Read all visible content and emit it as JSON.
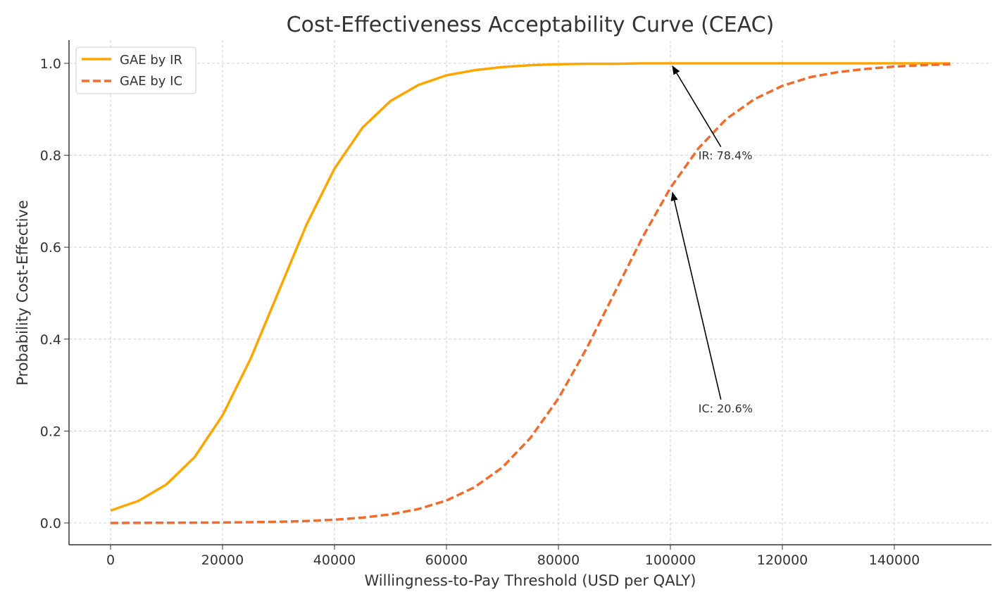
{
  "chart_data": {
    "type": "line",
    "title": "Cost-Effectiveness Acceptability Curve (CEAC)",
    "xlabel": "Willingness-to-Pay Threshold (USD per QALY)",
    "ylabel": "Probability Cost-Effective",
    "xlim": [
      -10000,
      157000
    ],
    "ylim": [
      -0.05,
      1.05
    ],
    "xticks": [
      0,
      20000,
      40000,
      60000,
      80000,
      100000,
      120000,
      140000
    ],
    "xtick_labels": [
      "0",
      "20000",
      "40000",
      "60000",
      "80000",
      "100000",
      "120000",
      "140000"
    ],
    "yticks": [
      0,
      0.2,
      0.4,
      0.6,
      0.8,
      1.0
    ],
    "ytick_labels": [
      "0.0",
      "0.2",
      "0.4",
      "0.6",
      "0.8",
      "1.0"
    ],
    "grid": true,
    "legend_position": "top-left",
    "x": [
      0,
      5000,
      10000,
      15000,
      20000,
      25000,
      30000,
      35000,
      40000,
      45000,
      50000,
      55000,
      60000,
      65000,
      70000,
      75000,
      80000,
      85000,
      90000,
      95000,
      100000,
      105000,
      110000,
      115000,
      120000,
      125000,
      130000,
      135000,
      140000,
      145000,
      150000
    ],
    "series": [
      {
        "name": "GAE by IR",
        "color": "#FFA500",
        "style": "solid",
        "values": [
          0.027,
          0.048,
          0.084,
          0.143,
          0.234,
          0.357,
          0.503,
          0.649,
          0.771,
          0.86,
          0.918,
          0.953,
          0.974,
          0.985,
          0.992,
          0.996,
          0.998,
          0.999,
          0.999,
          1.0,
          1.0,
          1.0,
          1.0,
          1.0,
          1.0,
          1.0,
          1.0,
          1.0,
          1.0,
          1.0,
          1.0
        ]
      },
      {
        "name": "GAE by IC",
        "color": "#F26B2A",
        "style": "dashed",
        "values": [
          0.0,
          0.0002,
          0.0004,
          0.0006,
          0.001,
          0.0016,
          0.0026,
          0.0043,
          0.007,
          0.0115,
          0.0187,
          0.0303,
          0.0488,
          0.0776,
          0.121,
          0.185,
          0.271,
          0.379,
          0.5,
          0.621,
          0.729,
          0.815,
          0.879,
          0.922,
          0.951,
          0.97,
          0.981,
          0.988,
          0.993,
          0.996,
          0.998
        ]
      }
    ],
    "annotations": [
      {
        "text": "IR: 78.4%",
        "point": [
          100000,
          1.0
        ],
        "text_at": [
          105000,
          0.8
        ]
      },
      {
        "text": "IC: 20.6%",
        "point": [
          100000,
          0.725
        ],
        "text_at": [
          105000,
          0.25
        ]
      }
    ]
  }
}
